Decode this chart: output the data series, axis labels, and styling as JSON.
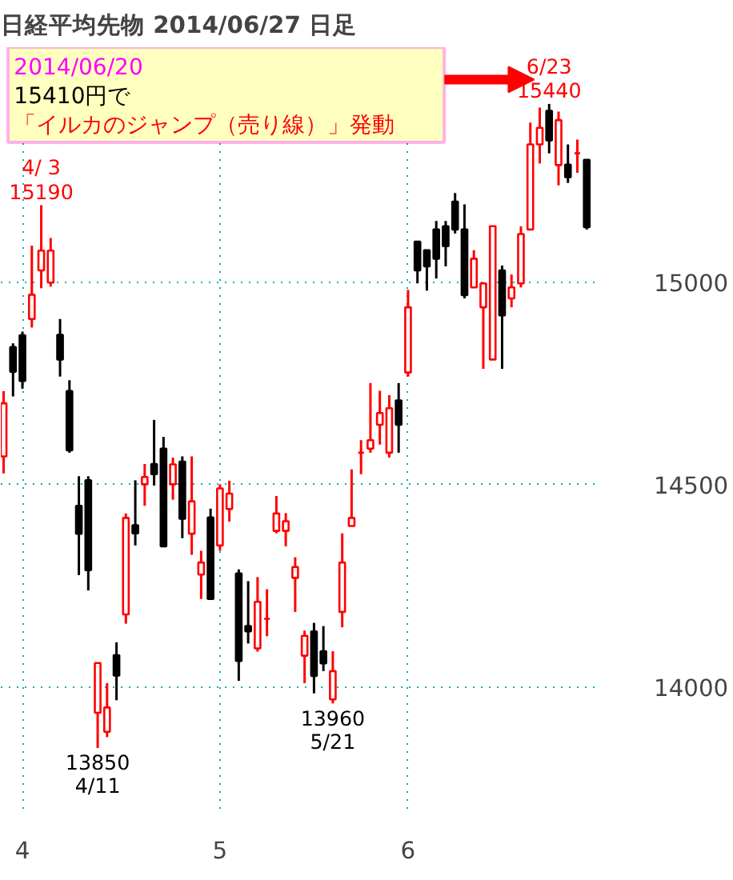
{
  "chart_data": {
    "type": "candlestick",
    "title": "日経平均先物  2014/06/27  日足",
    "categories": [
      null,
      null,
      "4",
      null,
      null,
      null,
      null,
      null,
      null,
      null,
      null,
      null,
      null,
      null,
      null,
      null,
      null,
      null,
      null,
      null,
      null,
      null,
      null,
      "5",
      null,
      null,
      null,
      null,
      null,
      null,
      null,
      null,
      null,
      null,
      null,
      null,
      null,
      null,
      null,
      null,
      null,
      null,
      null,
      "6",
      null,
      null,
      null,
      null,
      null,
      null,
      null,
      null,
      null,
      null,
      null,
      null,
      null,
      null,
      null,
      null,
      null,
      null,
      null
    ],
    "ohlc": [
      [
        14570,
        14731,
        14528,
        14701
      ],
      [
        14840,
        14849,
        14718,
        14779
      ],
      [
        14869,
        14878,
        14737,
        14756
      ],
      [
        14909,
        15090,
        14888,
        14969
      ],
      [
        15029,
        15190,
        14985,
        15078
      ],
      [
        14999,
        15109,
        14989,
        15078
      ],
      [
        14870,
        14909,
        14767,
        14809
      ],
      [
        14731,
        14758,
        14579,
        14585
      ],
      [
        14448,
        14521,
        14277,
        14379
      ],
      [
        14511,
        14521,
        14239,
        14289
      ],
      [
        13937,
        14060,
        13850,
        14060
      ],
      [
        13890,
        14010,
        13877,
        13950
      ],
      [
        14079,
        14111,
        13968,
        14029
      ],
      [
        14180,
        14429,
        14157,
        14418
      ],
      [
        14400,
        14511,
        14350,
        14380
      ],
      [
        14501,
        14551,
        14448,
        14519
      ],
      [
        14551,
        14660,
        14498,
        14526
      ],
      [
        14589,
        14618,
        14348,
        14348
      ],
      [
        14501,
        14567,
        14463,
        14550
      ],
      [
        14557,
        14570,
        14368,
        14416
      ],
      [
        14379,
        14570,
        14327,
        14459
      ],
      [
        14278,
        14337,
        14218,
        14308
      ],
      [
        14419,
        14441,
        14218,
        14218
      ],
      [
        14350,
        14501,
        14337,
        14491
      ],
      [
        14440,
        14510,
        14409,
        14478
      ],
      [
        14281,
        14291,
        14016,
        14065
      ],
      [
        14151,
        14262,
        14108,
        14138
      ],
      [
        14096,
        14272,
        14088,
        14211
      ],
      [
        14169,
        14242,
        14126,
        14169
      ],
      [
        14386,
        14472,
        14380,
        14429
      ],
      [
        14386,
        14430,
        14348,
        14410
      ],
      [
        14270,
        14321,
        14186,
        14297
      ],
      [
        14078,
        14140,
        14010,
        14127
      ],
      [
        14138,
        14159,
        13985,
        14028
      ],
      [
        14089,
        14151,
        14040,
        14059
      ],
      [
        13970,
        14089,
        13960,
        14040
      ],
      [
        14186,
        14380,
        14148,
        14308
      ],
      [
        14398,
        14538,
        14398,
        14418
      ],
      [
        14579,
        14610,
        14526,
        14579
      ],
      [
        14589,
        14751,
        14579,
        14610
      ],
      [
        14648,
        14732,
        14599,
        14677
      ],
      [
        14579,
        14721,
        14567,
        14689
      ],
      [
        14708,
        14751,
        14579,
        14648
      ],
      [
        14777,
        14981,
        14767,
        14938
      ],
      [
        15100,
        15100,
        14997,
        15029
      ],
      [
        15079,
        15079,
        14979,
        15039
      ],
      [
        15130,
        15151,
        15009,
        15058
      ],
      [
        15138,
        15151,
        15039,
        15089
      ],
      [
        15199,
        15220,
        15120,
        15130
      ],
      [
        15130,
        15192,
        14960,
        14968
      ],
      [
        14987,
        15079,
        14987,
        15058
      ],
      [
        14938,
        15000,
        14786,
        14997
      ],
      [
        14809,
        15138,
        14809,
        15138
      ],
      [
        15029,
        15041,
        14786,
        14918
      ],
      [
        14960,
        15019,
        14938,
        14987
      ],
      [
        14997,
        15138,
        14987,
        15119
      ],
      [
        15130,
        15394,
        15130,
        15340
      ],
      [
        15340,
        15431,
        15293,
        15381
      ],
      [
        15423,
        15440,
        15318,
        15350
      ],
      [
        15289,
        15421,
        15239,
        15400
      ],
      [
        15290,
        15340,
        15245,
        15259
      ],
      [
        15318,
        15352,
        15270,
        15318
      ],
      [
        15302,
        15302,
        15130,
        15136
      ]
    ],
    "colors": [
      "#ff0000",
      "#000000",
      "#000000",
      "#ff0000",
      "#ff0000",
      "#ff0000",
      "#000000",
      "#000000",
      "#000000",
      "#000000",
      "#ff0000",
      "#ff0000",
      "#000000",
      "#ff0000",
      "#000000",
      "#ff0000",
      "#000000",
      "#000000",
      "#ff0000",
      "#000000",
      "#ff0000",
      "#ff0000",
      "#000000",
      "#ff0000",
      "#ff0000",
      "#000000",
      "#000000",
      "#ff0000",
      "#ff0000",
      "#ff0000",
      "#ff0000",
      "#ff0000",
      "#ff0000",
      "#000000",
      "#000000",
      "#ff0000",
      "#ff0000",
      "#ff0000",
      "#ff0000",
      "#ff0000",
      "#ff0000",
      "#ff0000",
      "#000000",
      "#ff0000",
      "#000000",
      "#000000",
      "#000000",
      "#000000",
      "#000000",
      "#000000",
      "#ff0000",
      "#ff0000",
      "#ff0000",
      "#000000",
      "#ff0000",
      "#ff0000",
      "#ff0000",
      "#ff0000",
      "#000000",
      "#ff0000",
      "#000000",
      "#ff0000",
      "#000000"
    ],
    "ylim": [
      13700,
      15580
    ],
    "yticks": [
      14000,
      14500,
      15000
    ],
    "grid": true,
    "annotations": [
      {
        "text": "4/ 3\n15190",
        "y": 15190
      },
      {
        "text": "13850\n4/11",
        "y": 13850
      },
      {
        "text": "13960\n5/21",
        "y": 13960
      },
      {
        "text": "6/23\n15440",
        "y": 15440
      },
      "2014/06/20",
      "15410円で",
      "「イルカのジャンプ（売り線）」発動"
    ]
  }
}
